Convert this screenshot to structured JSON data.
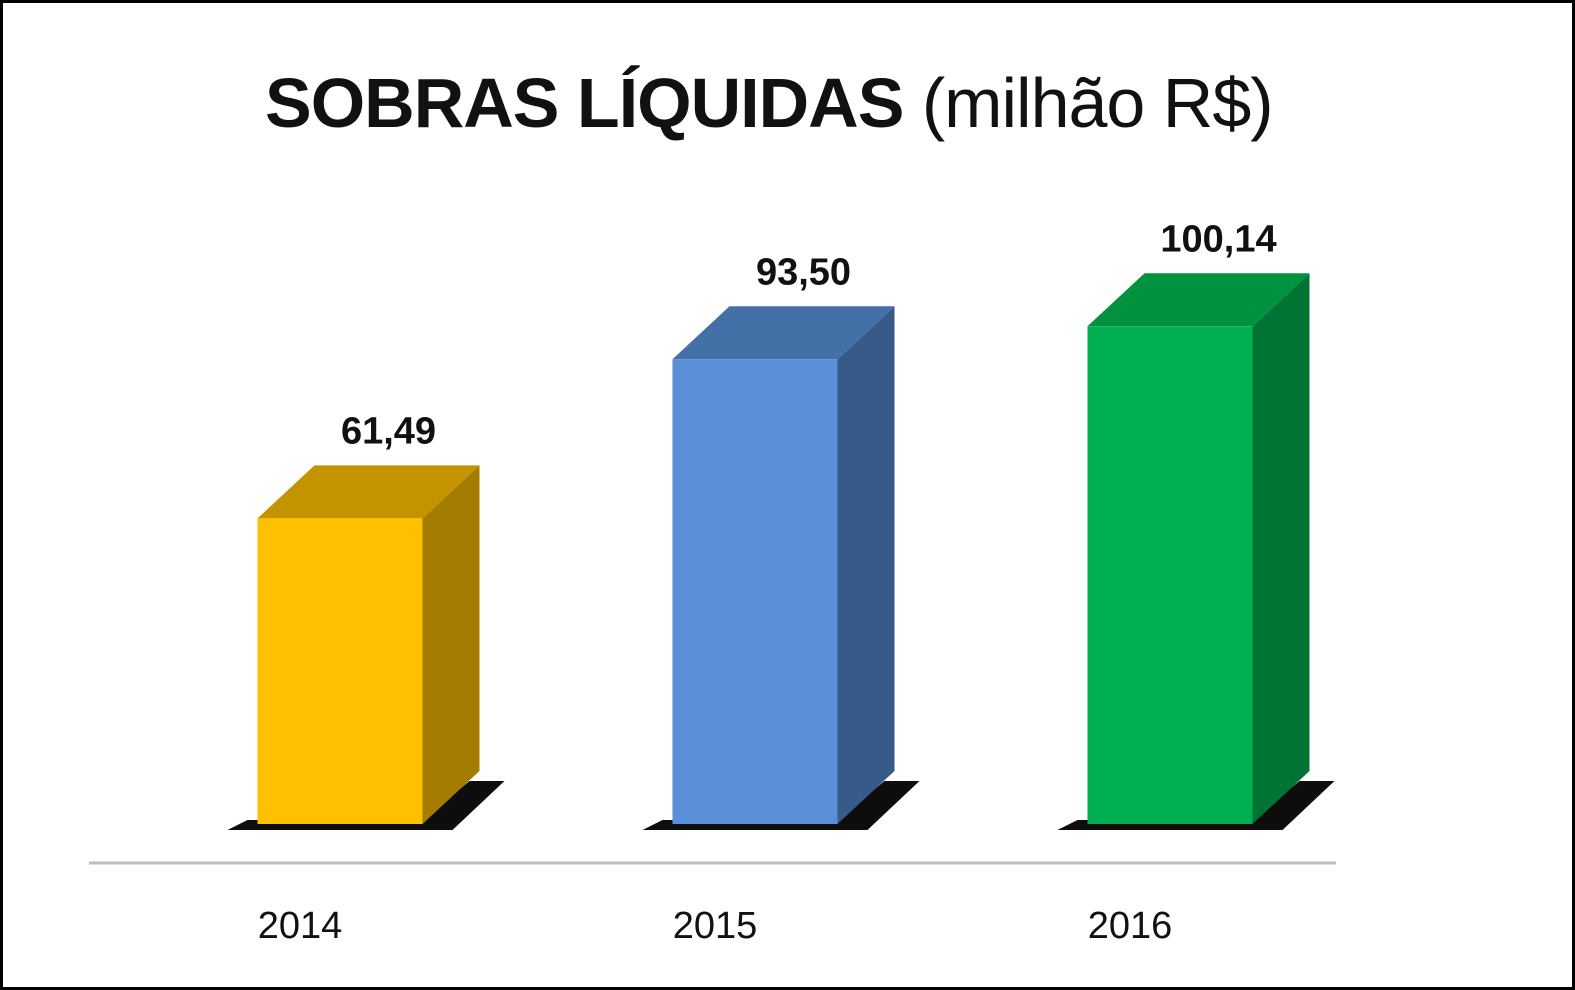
{
  "chart_data": {
    "type": "bar",
    "title_bold": "SOBRAS LÍQUIDAS",
    "title_unit": "(milhão R$)",
    "categories": [
      "2014",
      "2015",
      "2016"
    ],
    "values": [
      61.49,
      93.5,
      100.14
    ],
    "value_labels": [
      "61,49",
      "93,50",
      "100,14"
    ],
    "colors": {
      "front": [
        "#FFC000",
        "#5A8ED6",
        "#00B050"
      ],
      "side": [
        "#A37C00",
        "#375A88",
        "#007435"
      ],
      "top": [
        "#C49300",
        "#4470A8",
        "#00923E"
      ],
      "axis": "#BFBFBF",
      "shadow": "#000000"
    },
    "style": "3d-columns",
    "grid": false,
    "legend": "none"
  }
}
